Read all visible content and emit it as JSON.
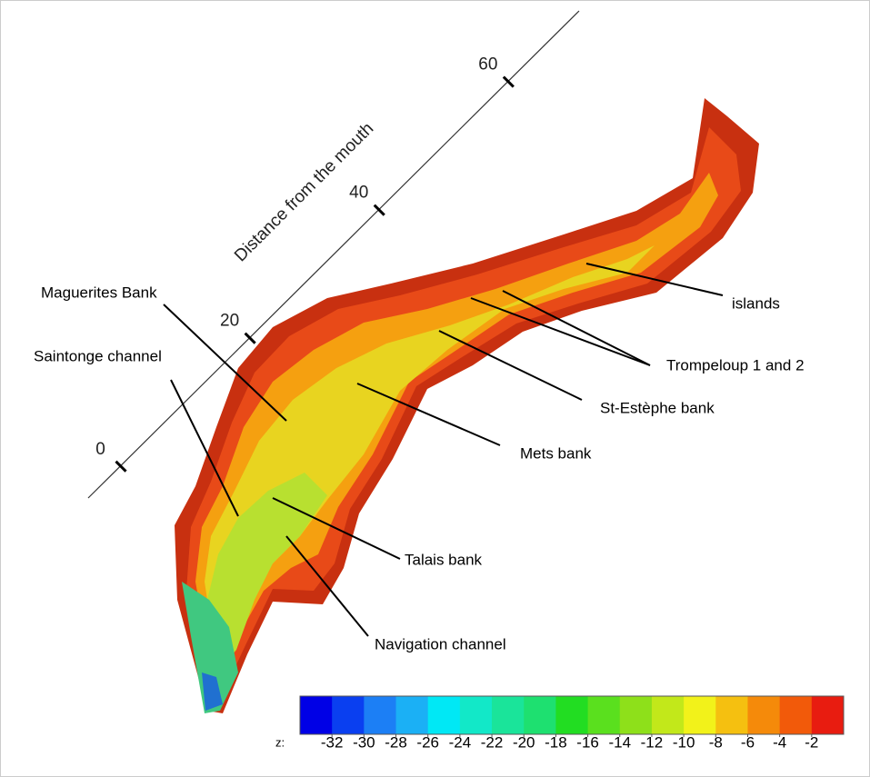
{
  "chart_data": {
    "type": "surface",
    "axis_label": "Distance from the mouth",
    "axis_lim": [
      -5,
      71
    ],
    "axis_ticks": [
      0,
      20,
      40,
      60
    ],
    "annotations": [
      "Maguerites Bank",
      "Saintonge channel",
      "Mets bank",
      "St-Estèphe bank",
      "Trompeloup 1 and 2",
      "islands",
      "Talais bank",
      "Navigation channel"
    ],
    "colorbar": {
      "label": "z:",
      "lim": [
        -34,
        0
      ],
      "ticks": [
        -32,
        -30,
        -28,
        -26,
        -24,
        -22,
        -20,
        -18,
        -16,
        -14,
        -12,
        -10,
        -8,
        -6,
        -4,
        -2
      ],
      "colors": [
        "#0000e6",
        "#0a3ff0",
        "#1c7ff5",
        "#1bb0f5",
        "#00e8f5",
        "#12e8c8",
        "#1ae49a",
        "#1ee070",
        "#22dd22",
        "#5ae01e",
        "#8ee01a",
        "#c2e81a",
        "#f2f21a",
        "#f5c010",
        "#f58a0a",
        "#f25a0a",
        "#e81c10"
      ]
    }
  }
}
